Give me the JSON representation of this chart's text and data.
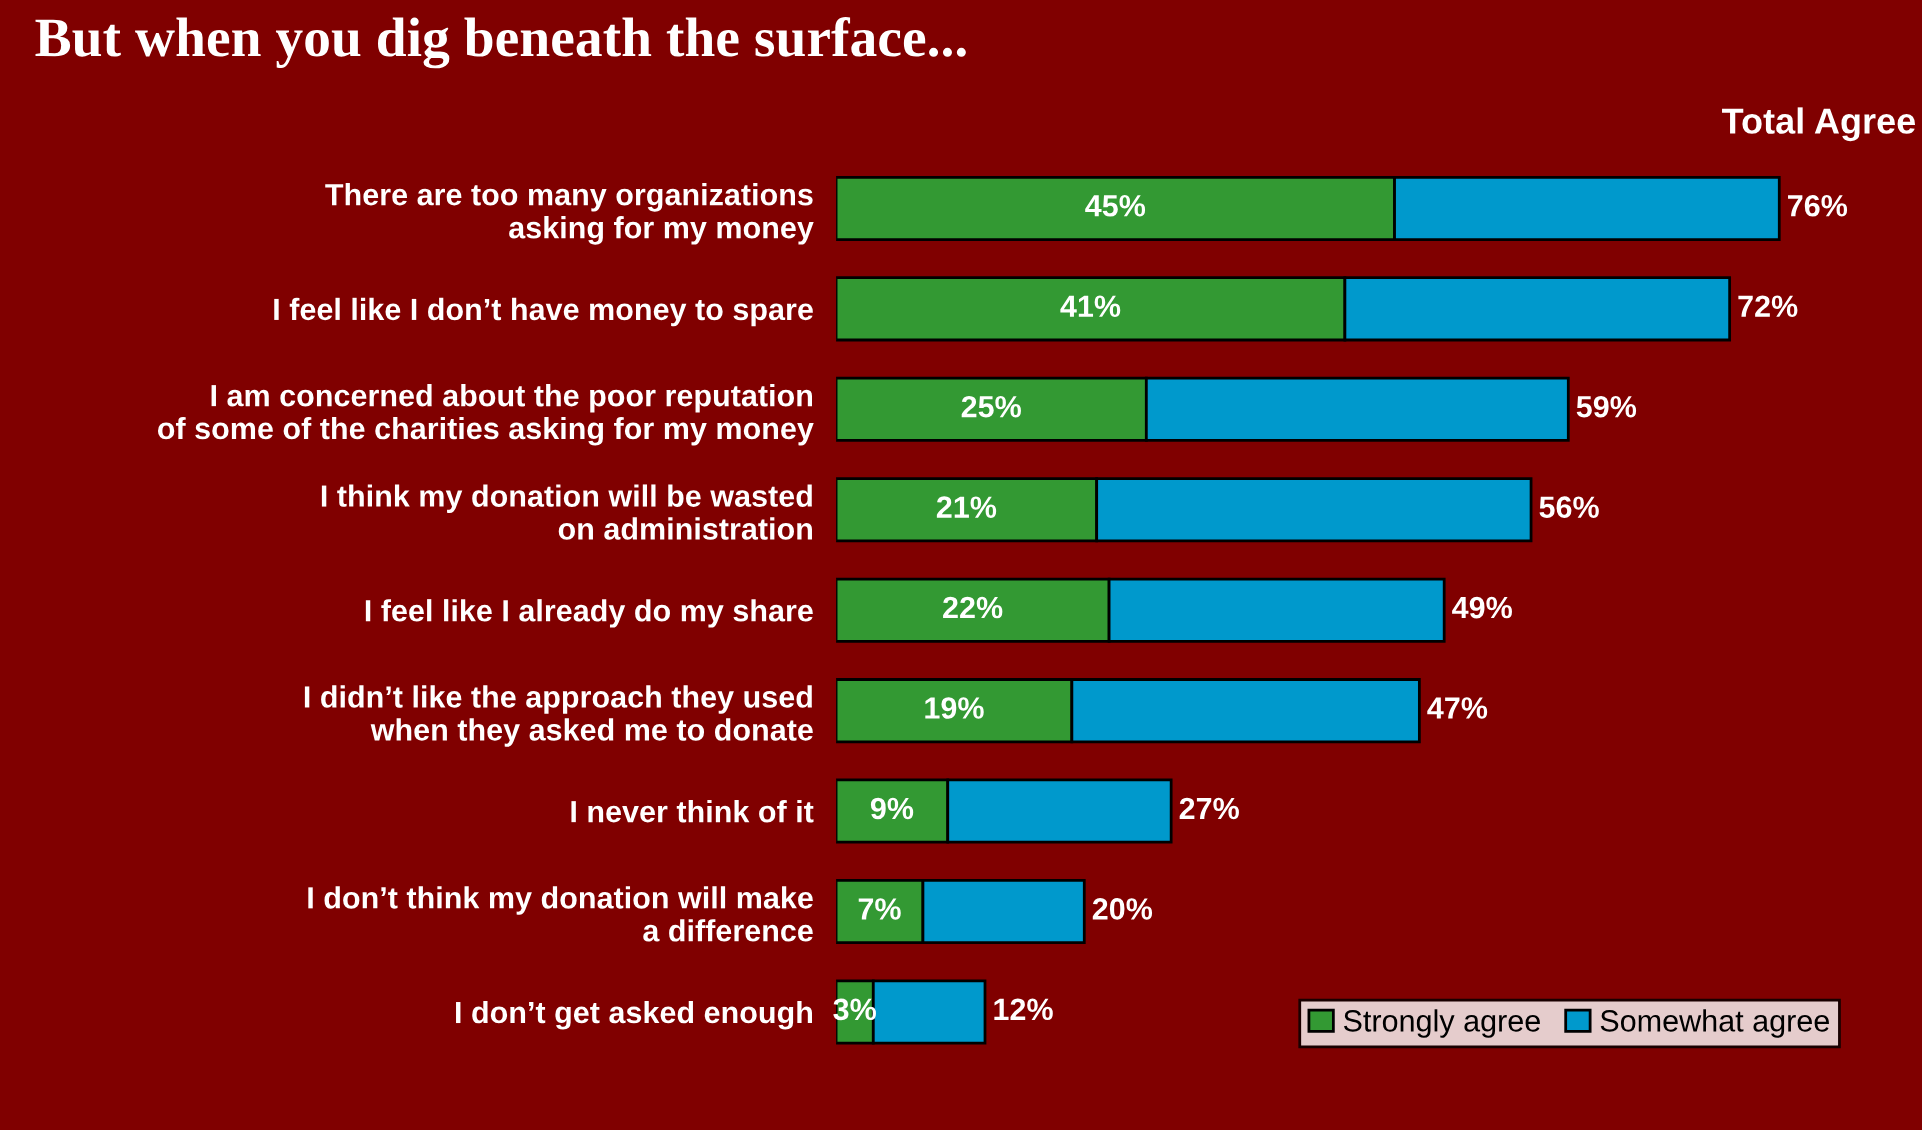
{
  "chart_data": {
    "type": "bar",
    "orientation": "horizontal",
    "stacked": true,
    "title": "But when you dig beneath the surface...",
    "categories": [
      "There are too many organizations\nasking for my money",
      "I feel like I don’t have money to spare",
      "I am concerned about the poor reputation\nof some of the charities asking for my money",
      "I think my donation will be wasted\non administration",
      "I feel like I already do my share",
      "I didn’t like the approach they used\nwhen they asked me to donate",
      "I never think of it",
      "I don’t think my donation will make\na difference",
      "I don’t get asked enough"
    ],
    "series": [
      {
        "name": "Strongly agree",
        "color": "#339933",
        "values": [
          45,
          41,
          25,
          21,
          22,
          19,
          9,
          7,
          3
        ],
        "value_labels": [
          "45%",
          "41%",
          "25%",
          "21%",
          "22%",
          "19%",
          "9%",
          "7%",
          "3%"
        ]
      },
      {
        "name": "Somewhat agree",
        "color": "#0099cc",
        "values": [
          31,
          31,
          34,
          35,
          27,
          28,
          18,
          13,
          9
        ]
      }
    ],
    "totals": [
      "76%",
      "72%",
      "59%",
      "56%",
      "49%",
      "47%",
      "27%",
      "20%",
      "12%"
    ],
    "annotations": [
      "Total Agree"
    ],
    "legend": "bottom right",
    "grid": false
  }
}
